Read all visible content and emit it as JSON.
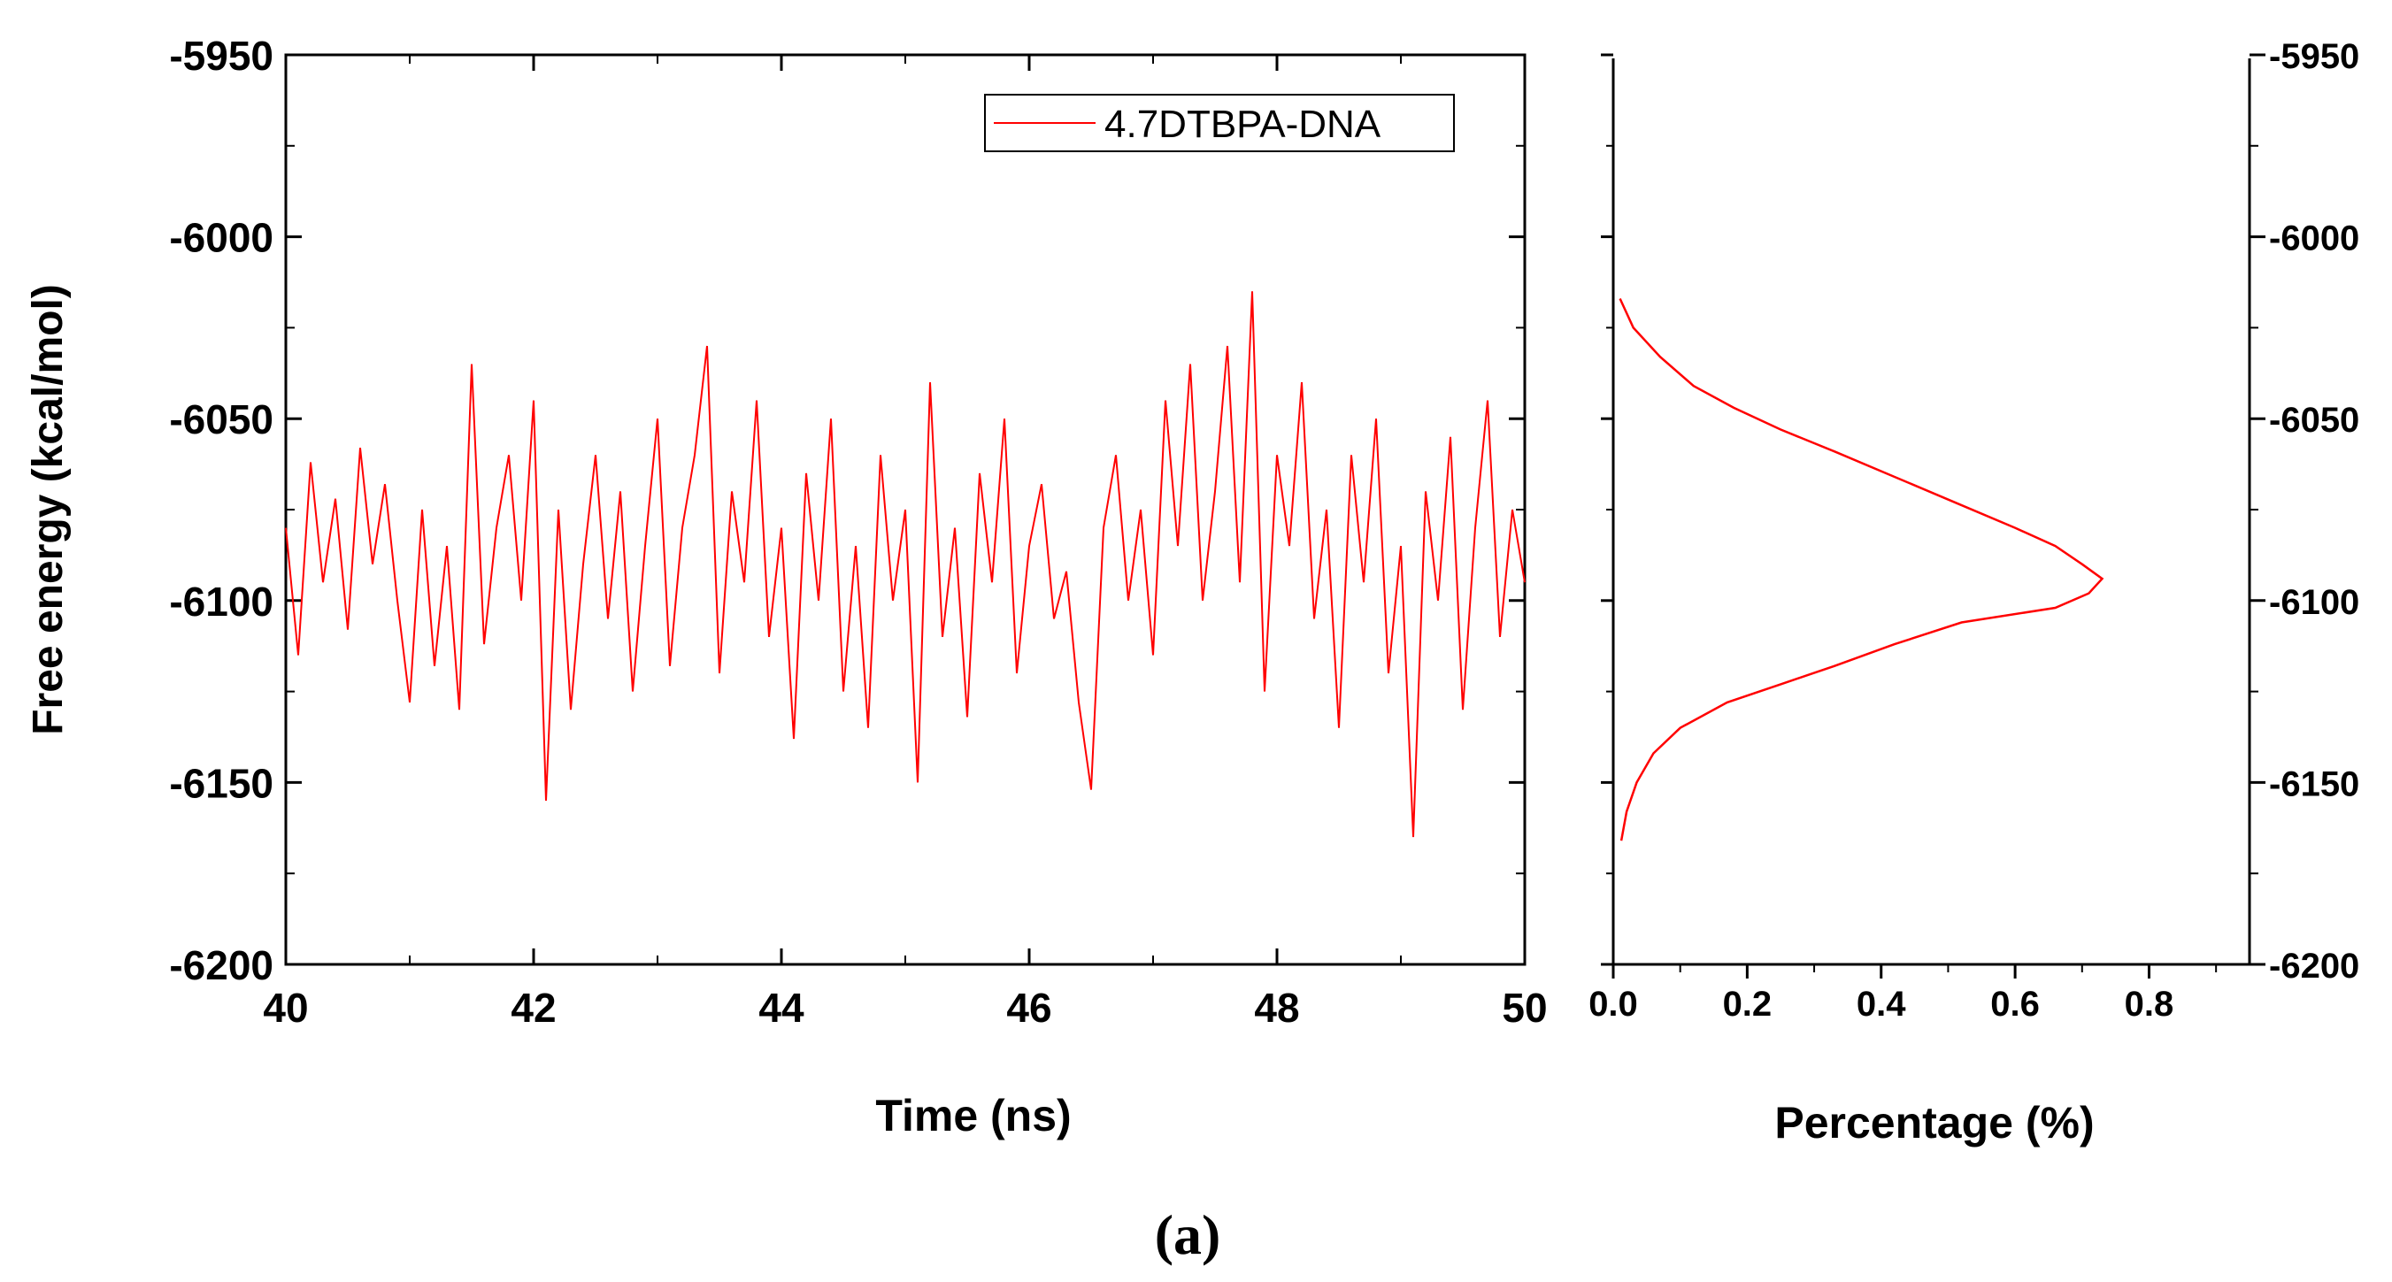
{
  "figure_caption": "(a)",
  "chart_data": [
    {
      "type": "line",
      "panel": "left",
      "xlabel": "Time (ns)",
      "ylabel": "Free energy (kcal/mol)",
      "xlim": [
        40,
        50
      ],
      "ylim": [
        -6200,
        -5950
      ],
      "xticks": [
        "40",
        "42",
        "44",
        "46",
        "48",
        "50"
      ],
      "yticks": [
        "-5950",
        "-6000",
        "-6050",
        "-6100",
        "-6150",
        "-6200"
      ],
      "legend_position": "top-right",
      "series": [
        {
          "name": "4.7DTBPA-DNA",
          "color": "#ff0000",
          "x": [
            40.0,
            40.1,
            40.2,
            40.3,
            40.4,
            40.5,
            40.6,
            40.7,
            40.8,
            40.9,
            41.0,
            41.1,
            41.2,
            41.3,
            41.4,
            41.5,
            41.6,
            41.7,
            41.8,
            41.9,
            42.0,
            42.1,
            42.2,
            42.3,
            42.4,
            42.5,
            42.6,
            42.7,
            42.8,
            42.9,
            43.0,
            43.1,
            43.2,
            43.3,
            43.4,
            43.5,
            43.6,
            43.7,
            43.8,
            43.9,
            44.0,
            44.1,
            44.2,
            44.3,
            44.4,
            44.5,
            44.6,
            44.7,
            44.8,
            44.9,
            45.0,
            45.1,
            45.2,
            45.3,
            45.4,
            45.5,
            45.6,
            45.7,
            45.8,
            45.9,
            46.0,
            46.1,
            46.2,
            46.3,
            46.4,
            46.5,
            46.6,
            46.7,
            46.8,
            46.9,
            47.0,
            47.1,
            47.2,
            47.3,
            47.4,
            47.5,
            47.6,
            47.7,
            47.8,
            47.9,
            48.0,
            48.1,
            48.2,
            48.3,
            48.4,
            48.5,
            48.6,
            48.7,
            48.8,
            48.9,
            49.0,
            49.1,
            49.2,
            49.3,
            49.4,
            49.5,
            49.6,
            49.7,
            49.8,
            49.9,
            50.0
          ],
          "y": [
            -6080,
            -6115,
            -6062,
            -6095,
            -6072,
            -6108,
            -6058,
            -6090,
            -6068,
            -6100,
            -6128,
            -6075,
            -6118,
            -6085,
            -6130,
            -6035,
            -6112,
            -6080,
            -6060,
            -6100,
            -6045,
            -6155,
            -6075,
            -6130,
            -6090,
            -6060,
            -6105,
            -6070,
            -6125,
            -6085,
            -6050,
            -6118,
            -6080,
            -6060,
            -6030,
            -6120,
            -6070,
            -6095,
            -6045,
            -6110,
            -6080,
            -6138,
            -6065,
            -6100,
            -6050,
            -6125,
            -6085,
            -6135,
            -6060,
            -6100,
            -6075,
            -6150,
            -6040,
            -6110,
            -6080,
            -6132,
            -6065,
            -6095,
            -6050,
            -6120,
            -6085,
            -6068,
            -6105,
            -6092,
            -6128,
            -6152,
            -6080,
            -6060,
            -6100,
            -6075,
            -6115,
            -6045,
            -6085,
            -6035,
            -6100,
            -6070,
            -6030,
            -6095,
            -6015,
            -6125,
            -6060,
            -6085,
            -6040,
            -6105,
            -6075,
            -6135,
            -6060,
            -6095,
            -6050,
            -6120,
            -6085,
            -6165,
            -6070,
            -6100,
            -6055,
            -6130,
            -6080,
            -6045,
            -6110,
            -6075,
            -6095
          ]
        }
      ]
    },
    {
      "type": "line",
      "panel": "right",
      "xlabel": "Percentage (%)",
      "ylabel": "",
      "xlim": [
        0.0,
        0.95
      ],
      "ylim": [
        -6200,
        -5950
      ],
      "xticks": [
        "0.0",
        "0.2",
        "0.4",
        "0.6",
        "0.8"
      ],
      "yticks": [
        "-5950",
        "-6000",
        "-6050",
        "-6100",
        "-6150",
        "-6200"
      ],
      "y_axis_side": "right",
      "series": [
        {
          "color": "#ff0000",
          "percentage": [
            0.01,
            0.03,
            0.07,
            0.12,
            0.18,
            0.25,
            0.33,
            0.42,
            0.51,
            0.6,
            0.66,
            0.7,
            0.73,
            0.71,
            0.66,
            0.52,
            0.42,
            0.33,
            0.25,
            0.17,
            0.1,
            0.06,
            0.035,
            0.02,
            0.012
          ],
          "free_energy": [
            -6017,
            -6025,
            -6033,
            -6041,
            -6047,
            -6053,
            -6059,
            -6066,
            -6073,
            -6080,
            -6085,
            -6090,
            -6094,
            -6098,
            -6102,
            -6106,
            -6112,
            -6118,
            -6123,
            -6128,
            -6135,
            -6142,
            -6150,
            -6158,
            -6166
          ]
        }
      ]
    }
  ]
}
